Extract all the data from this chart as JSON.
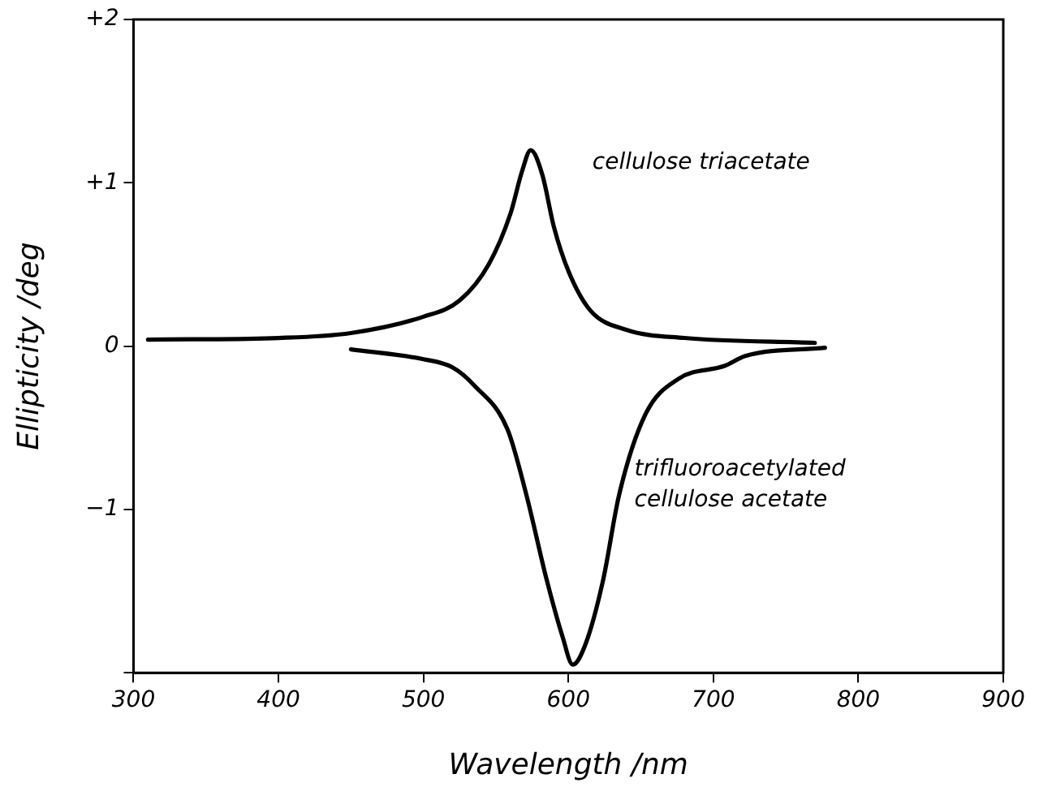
{
  "chart_data": {
    "type": "line",
    "xlabel": "Wavelength /nm",
    "ylabel": "Ellipticity /deg",
    "xlim": [
      300,
      900
    ],
    "xticks": [
      300,
      400,
      500,
      600,
      700,
      800,
      900
    ],
    "ylim": [
      -2,
      2
    ],
    "yticks": [
      {
        "value": -2,
        "label": null
      },
      {
        "value": -1,
        "label": "−1"
      },
      0,
      {
        "value": 1,
        "label": "+1"
      },
      {
        "value": 2,
        "label": "+2"
      }
    ],
    "grid": false,
    "legend": false,
    "marker": "none",
    "line_style": "solid",
    "series": [
      {
        "name": "cellulose triacetate",
        "color": "#000000",
        "x": [
          310,
          400,
          450,
          500,
          525,
          545,
          560,
          568,
          574,
          582,
          590,
          600,
          615,
          640,
          680,
          770
        ],
        "values": [
          0.04,
          0.05,
          0.08,
          0.18,
          0.28,
          0.5,
          0.81,
          1.07,
          1.2,
          1.05,
          0.73,
          0.46,
          0.22,
          0.1,
          0.05,
          0.02
        ]
      },
      {
        "name": "trifluoroacetylated cellulose acetate",
        "color": "#000000",
        "x": [
          450,
          500,
          520,
          535,
          558,
          571,
          585,
          596,
          603,
          612,
          624,
          635,
          653,
          676,
          708,
          722,
          777
        ],
        "values": [
          -0.02,
          -0.08,
          -0.13,
          -0.24,
          -0.51,
          -0.91,
          -1.43,
          -1.78,
          -1.95,
          -1.82,
          -1.43,
          -0.91,
          -0.42,
          -0.2,
          -0.12,
          -0.06,
          -0.01
        ]
      }
    ]
  }
}
